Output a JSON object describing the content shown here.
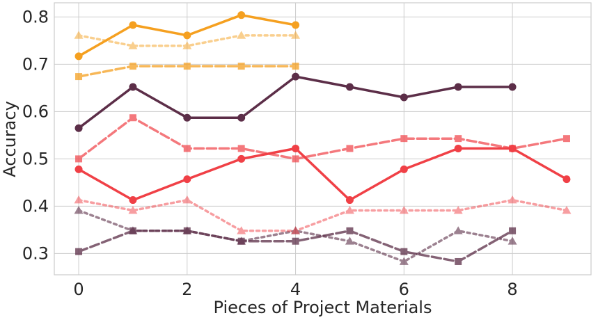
{
  "chart_data": {
    "type": "line",
    "title": "",
    "xlabel": "Pieces of Project Materials",
    "ylabel": "Accuracy",
    "xlim": [
      -0.45,
      9.45
    ],
    "ylim": [
      0.255,
      0.83
    ],
    "xticks": [
      0,
      2,
      4,
      6,
      8
    ],
    "yticks": [
      0.3,
      0.4,
      0.5,
      0.6,
      0.7,
      0.8
    ],
    "xtick_labels": [
      "0",
      "2",
      "4",
      "6",
      "8"
    ],
    "ytick_labels": [
      "0.3",
      "0.4",
      "0.5",
      "0.6",
      "0.7",
      "0.8"
    ],
    "grid": true,
    "legend": "none",
    "series": [
      {
        "color": "#f5a020",
        "linestyle": "solid",
        "marker": "circle",
        "alpha": 1.0,
        "x": [
          0,
          1,
          2,
          3,
          4
        ],
        "y": [
          0.717,
          0.783,
          0.761,
          0.804,
          0.783
        ]
      },
      {
        "color": "#f5a020",
        "linestyle": "dotted",
        "marker": "triangle",
        "alpha": 0.5,
        "x": [
          0,
          1,
          2,
          3,
          4
        ],
        "y": [
          0.761,
          0.739,
          0.739,
          0.761,
          0.761
        ]
      },
      {
        "color": "#f5a020",
        "linestyle": "dashed",
        "marker": "square",
        "alpha": 0.75,
        "x": [
          0,
          1,
          2,
          3,
          4
        ],
        "y": [
          0.674,
          0.696,
          0.696,
          0.696,
          0.696
        ]
      },
      {
        "color": "#5c2e48",
        "linestyle": "solid",
        "marker": "circle",
        "alpha": 1.0,
        "x": [
          0,
          1,
          2,
          3,
          4,
          5,
          6,
          7,
          8
        ],
        "y": [
          0.565,
          0.652,
          0.587,
          0.587,
          0.674,
          0.652,
          0.63,
          0.652,
          0.652
        ]
      },
      {
        "color": "#5c2e48",
        "linestyle": "dotted",
        "marker": "triangle",
        "alpha": 0.6,
        "x": [
          0,
          1,
          2,
          3,
          4,
          5,
          6,
          7,
          8
        ],
        "y": [
          0.391,
          0.348,
          0.348,
          0.326,
          0.348,
          0.326,
          0.283,
          0.348,
          0.326
        ]
      },
      {
        "color": "#5c2e48",
        "linestyle": "dashed",
        "marker": "square",
        "alpha": 0.75,
        "x": [
          0,
          1,
          2,
          3,
          4,
          5,
          6,
          7,
          8
        ],
        "y": [
          0.304,
          0.348,
          0.348,
          0.326,
          0.326,
          0.348,
          0.304,
          0.283,
          0.348
        ]
      },
      {
        "color": "#f04046",
        "linestyle": "solid",
        "marker": "circle",
        "alpha": 1.0,
        "x": [
          0,
          1,
          2,
          3,
          4,
          5,
          6,
          7,
          8,
          9
        ],
        "y": [
          0.478,
          0.413,
          0.457,
          0.5,
          0.522,
          0.413,
          0.478,
          0.522,
          0.522,
          0.457
        ]
      },
      {
        "color": "#f04046",
        "linestyle": "dotted",
        "marker": "triangle",
        "alpha": 0.5,
        "x": [
          0,
          1,
          2,
          3,
          4,
          5,
          6,
          7,
          8,
          9
        ],
        "y": [
          0.413,
          0.391,
          0.413,
          0.348,
          0.348,
          0.391,
          0.391,
          0.391,
          0.413,
          0.391
        ]
      },
      {
        "color": "#f04046",
        "linestyle": "dashed",
        "marker": "square",
        "alpha": 0.7,
        "x": [
          0,
          1,
          2,
          3,
          4,
          5,
          6,
          7,
          8,
          9
        ],
        "y": [
          0.5,
          0.587,
          0.522,
          0.522,
          0.5,
          0.522,
          0.543,
          0.543,
          0.522,
          0.543
        ]
      }
    ]
  }
}
